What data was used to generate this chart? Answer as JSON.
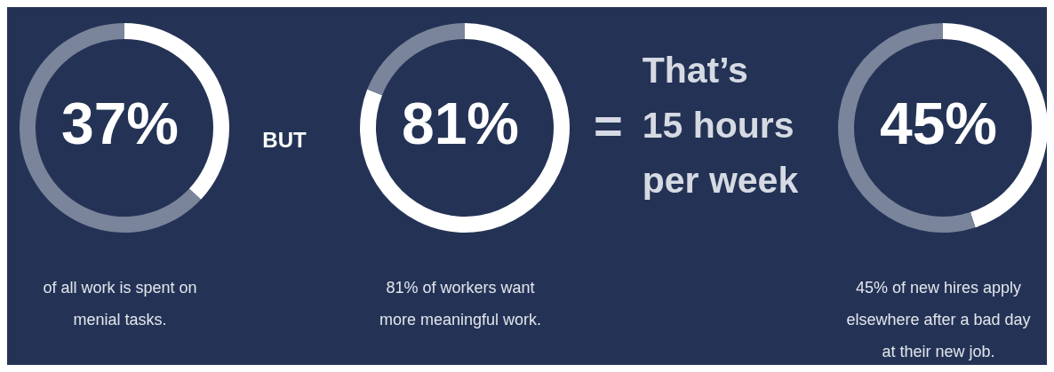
{
  "chart_data": [
    {
      "type": "donut",
      "title": "37%",
      "categories": [
        null,
        null
      ],
      "values": [
        37,
        63
      ],
      "colors": [
        "#ffffff",
        "#7a849a"
      ],
      "annotations": [
        "of all work is spent on\nmenial tasks."
      ]
    },
    {
      "type": "other",
      "annotations": [
        "BUT"
      ]
    },
    {
      "type": "donut",
      "title": "81%",
      "categories": [
        null,
        null
      ],
      "values": [
        81,
        19
      ],
      "colors": [
        "#ffffff",
        "#7a849a"
      ],
      "annotations": [
        "81% of workers want\nmore meaningful work."
      ]
    },
    {
      "type": "other",
      "annotations": [
        "=",
        "That’s\n15 hours\nper week"
      ]
    },
    {
      "type": "donut",
      "title": "45%",
      "categories": [
        null,
        null
      ],
      "values": [
        45,
        55
      ],
      "colors": [
        "#ffffff",
        "#7a849a"
      ],
      "annotations": [
        "45% of new hires apply\nelsewhere after a bad day\nat their new job."
      ]
    }
  ]
}
